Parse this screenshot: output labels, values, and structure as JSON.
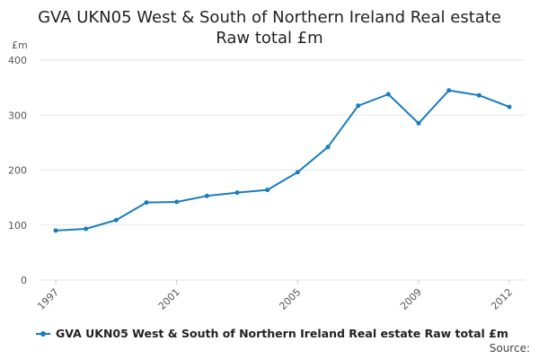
{
  "colors": {
    "series": "#1a7dbf",
    "grid": "#e6e6e6",
    "axis_text": "#555555"
  },
  "header": {
    "title_line1": "GVA UKN05 West & South of Northern Ireland Real estate",
    "title_line2": "Raw total £m"
  },
  "footer": {
    "source_label": "Source:"
  },
  "chart_data": {
    "type": "line",
    "title": "GVA UKN05 West & South of Northern Ireland Real estate Raw total £m",
    "ylabel": "£m",
    "xlabel": "",
    "ylim": [
      0,
      400
    ],
    "yticks": [
      0,
      100,
      200,
      300,
      400
    ],
    "xlim": [
      1997,
      2012
    ],
    "xticks": [
      1997,
      2001,
      2005,
      2009,
      2012
    ],
    "grid": true,
    "legend_position": "bottom",
    "x": [
      1997,
      1998,
      1999,
      2000,
      2001,
      2002,
      2003,
      2004,
      2005,
      2006,
      2007,
      2008,
      2009,
      2010,
      2011,
      2012
    ],
    "series": [
      {
        "name": "GVA UKN05 West & South of Northern Ireland Real estate Raw total £m",
        "values": [
          90,
          93,
          109,
          141,
          142,
          153,
          159,
          164,
          196,
          242,
          317,
          338,
          285,
          345,
          336,
          315
        ]
      }
    ]
  }
}
